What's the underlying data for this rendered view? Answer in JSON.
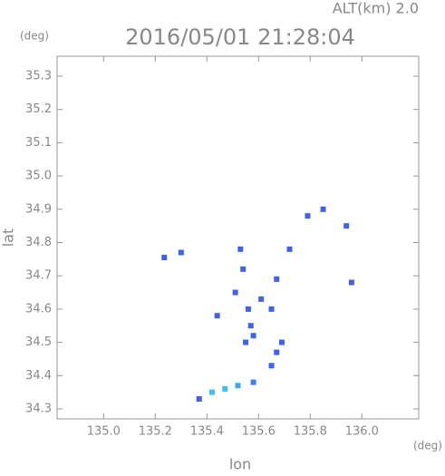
{
  "chart_data": {
    "type": "scatter",
    "title": "2016/05/01 21:28:04",
    "subtitle": "ALT(km) 2.0",
    "y_unit": "(deg)",
    "x_unit": "(deg)",
    "x_label": "lon",
    "y_label": "lat",
    "xlim": [
      134.82,
      136.22
    ],
    "ylim": [
      34.27,
      35.36
    ],
    "xticks": [
      {
        "value": 135.0,
        "label": "135.0"
      },
      135.2,
      135.4,
      135.6,
      135.8,
      {
        "value": 136.0,
        "label": "136.0"
      }
    ],
    "yticks": [
      34.3,
      34.4,
      34.5,
      34.6,
      34.7,
      34.8,
      34.9,
      {
        "value": 35.0,
        "label": "35.0"
      },
      35.1,
      35.2,
      35.3
    ],
    "x": [
      135.235,
      135.3,
      135.53,
      135.79,
      135.85,
      135.94,
      135.72,
      135.67,
      135.96,
      135.54,
      135.56,
      135.57,
      135.55,
      135.58,
      135.61,
      135.65,
      135.69,
      135.67,
      135.65,
      135.44,
      135.51,
      135.37,
      135.42,
      135.47,
      135.52,
      135.58
    ],
    "values": [
      34.755,
      34.77,
      34.78,
      34.88,
      34.9,
      34.85,
      34.78,
      34.69,
      34.68,
      34.72,
      34.6,
      34.55,
      34.5,
      34.52,
      34.63,
      34.6,
      34.5,
      34.47,
      34.43,
      34.58,
      34.65,
      34.33,
      34.35,
      34.36,
      34.37,
      34.38
    ],
    "colors": [
      "#4060f0",
      "#4060f0",
      "#4060f0",
      "#4060f0",
      "#4060f0",
      "#4060f0",
      "#4060f0",
      "#4060f0",
      "#4060f0",
      "#4060f0",
      "#4060f0",
      "#4060f0",
      "#4060f0",
      "#4060f0",
      "#4060f0",
      "#4060f0",
      "#4060f0",
      "#4060f0",
      "#4060f0",
      "#4060f0",
      "#4060f0",
      "#4060f0",
      "#40c0f8",
      "#40c0f8",
      "#40a8f0",
      "#4080f0"
    ]
  }
}
